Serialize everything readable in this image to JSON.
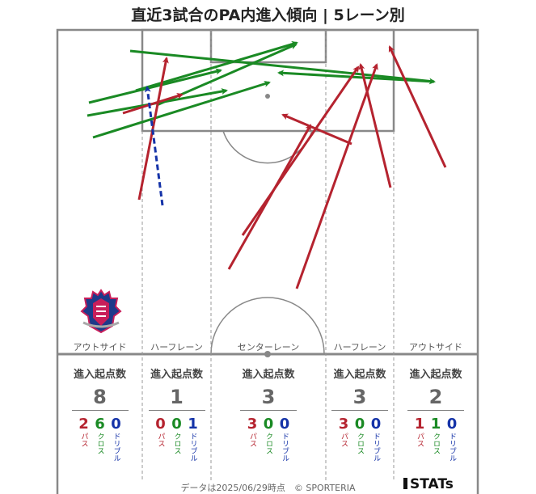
{
  "title": "直近3試合のPA内進入傾向 | 5レーン別",
  "lanes": [
    {
      "label": "アウトサイド",
      "stats_header": "進入起点数",
      "total": "8",
      "pass": "2",
      "cross": "6",
      "dribble": "0"
    },
    {
      "label": "ハーフレーン",
      "stats_header": "進入起点数",
      "total": "1",
      "pass": "0",
      "cross": "0",
      "dribble": "1"
    },
    {
      "label": "センターレーン",
      "stats_header": "進入起点数",
      "total": "3",
      "pass": "3",
      "cross": "0",
      "dribble": "0"
    },
    {
      "label": "ハーフレーン",
      "stats_header": "進入起点数",
      "total": "3",
      "pass": "3",
      "cross": "0",
      "dribble": "0"
    },
    {
      "label": "アウトサイド",
      "stats_header": "進入起点数",
      "total": "2",
      "pass": "1",
      "cross": "1",
      "dribble": "0"
    }
  ],
  "legend": {
    "pass": "パス",
    "cross": "クロス",
    "dribble": "ドリブル"
  },
  "colors": {
    "pass": "#b5232f",
    "cross": "#1a8a24",
    "dribble": "#1533a8",
    "pitch_line": "#888888"
  },
  "footer": "データは2025/06/29時点　© SPORTERIA",
  "brand": "STATs",
  "crest_icon": "club-crest-icon"
}
